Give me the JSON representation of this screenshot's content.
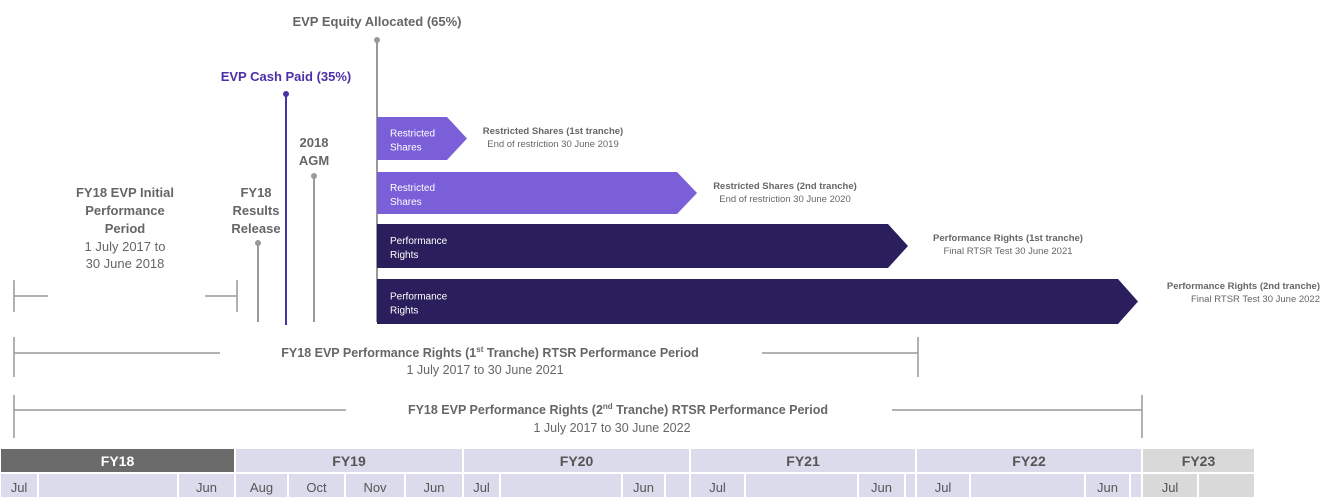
{
  "events": [
    {
      "label": "EVP Equity Allocated (65%)"
    },
    {
      "label": "EVP Cash Paid (35%)"
    },
    {
      "label_lines": [
        "2018",
        "AGM"
      ]
    },
    {
      "label_lines": [
        "FY18",
        "Results",
        "Release"
      ]
    }
  ],
  "initial_period": {
    "title_lines": [
      "FY18 EVP Initial",
      "Performance",
      "Period"
    ],
    "date_lines": [
      "1 July 2017 to",
      "30 June 2018"
    ]
  },
  "tranches": [
    {
      "bar_label_lines": [
        "Restricted",
        "Shares"
      ],
      "title": "Restricted Shares (1st tranche)",
      "detail": "End of restriction 30 June 2019"
    },
    {
      "bar_label_lines": [
        "Restricted",
        "Shares"
      ],
      "title": "Restricted Shares (2nd tranche)",
      "detail": "End of restriction 30 June 2020"
    },
    {
      "bar_label_lines": [
        "Performance",
        "Rights"
      ],
      "title": "Performance Rights (1st tranche)",
      "detail": "Final RTSR Test 30 June 2021"
    },
    {
      "bar_label_lines": [
        "Performance",
        "Rights"
      ],
      "title": "Performance Rights (2nd tranche)",
      "detail": "Final RTSR Test 30 June 2022"
    }
  ],
  "rtsr_periods": [
    {
      "title_pre": "FY18 EVP Performance Rights (1",
      "title_sup": "st",
      "title_post": " Tranche) RTSR Performance Period",
      "dates": "1 July 2017 to 30 June 2021"
    },
    {
      "title_pre": "FY18 EVP Performance Rights (2",
      "title_sup": "nd",
      "title_post": " Tranche) RTSR Performance Period",
      "dates": "1 July 2017 to 30 June 2022"
    }
  ],
  "timeline": {
    "years": [
      {
        "label": "FY18",
        "months": [
          "Jul",
          "Jun"
        ]
      },
      {
        "label": "FY19",
        "months": [
          "Aug",
          "Oct",
          "Nov",
          "Jun"
        ]
      },
      {
        "label": "FY20",
        "months": [
          "Jul",
          "Jun"
        ]
      },
      {
        "label": "FY21",
        "months": [
          "Jul",
          "Jun"
        ]
      },
      {
        "label": "FY22",
        "months": [
          "Jul",
          "Jun"
        ]
      },
      {
        "label": "FY23",
        "months": [
          "Jul"
        ]
      }
    ]
  }
}
